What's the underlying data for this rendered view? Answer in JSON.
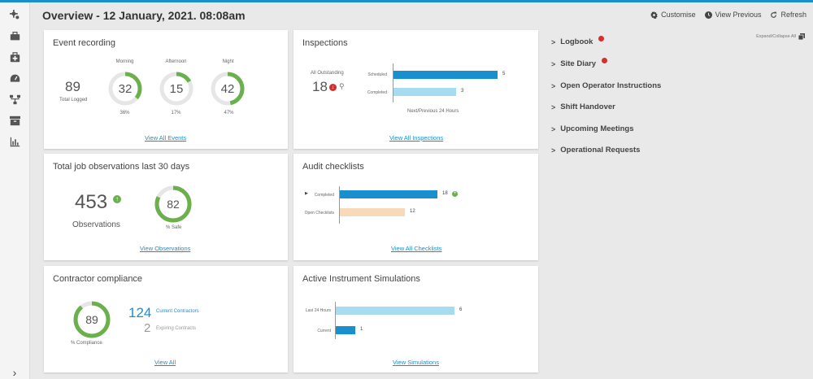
{
  "header": {
    "title": "Overview - 12 January, 2021. 08:08am",
    "customise": "Customise",
    "view_previous": "View Previous",
    "refresh": "Refresh"
  },
  "sidebar": {
    "items": [
      "settings-icon",
      "toolbox-icon",
      "first-aid-icon",
      "dashboard-icon",
      "network-icon",
      "archive-icon",
      "bar-chart-icon"
    ],
    "expand": "›"
  },
  "event_recording": {
    "title": "Event recording",
    "total": "89",
    "total_label": "Total Logged",
    "shifts": [
      {
        "label": "Morning",
        "value": "32",
        "pct_label": "36%",
        "fraction": 0.36
      },
      {
        "label": "Afternoon",
        "value": "15",
        "pct_label": "17%",
        "fraction": 0.17
      },
      {
        "label": "Night",
        "value": "42",
        "pct_label": "47%",
        "fraction": 0.47
      }
    ],
    "link": "View All Events"
  },
  "inspections": {
    "title": "Inspections",
    "outstanding_label": "All Outstanding",
    "outstanding": "18",
    "bars": [
      {
        "label": "Scheduled",
        "value": 5,
        "color": "#1a8fd0"
      },
      {
        "label": "Completed",
        "value": 3,
        "color": "#a7dcf0"
      }
    ],
    "max": 5,
    "axis_label": "Next/Previous 24 Hours",
    "link": "View All Inspections"
  },
  "job_observations": {
    "title": "Total job observations last 30 days",
    "count": "453",
    "count_label": "Observations",
    "safe": "82",
    "safe_fraction": 0.82,
    "safe_label": "% Safe",
    "link": "View Observations"
  },
  "audit_checklists": {
    "title": "Audit checklists",
    "bars": [
      {
        "label": "Completed",
        "value": 18,
        "color": "#1a8fd0"
      },
      {
        "label": "Open Checklists",
        "value": 12,
        "color": "#f8d9b8"
      }
    ],
    "max": 18,
    "link": "View All Checklists"
  },
  "contractor_compliance": {
    "title": "Contractor compliance",
    "compliance": "89",
    "compliance_fraction": 0.89,
    "compliance_label": "% Compliance",
    "current_count": "124",
    "current_label": "Current Contractors",
    "expiring_count": "2",
    "expiring_label": "Expiring Contracts",
    "link": "View All"
  },
  "instrument_simulations": {
    "title": "Active Instrument Simulations",
    "bars": [
      {
        "label": "Last 24 Hours",
        "value": 6,
        "color": "#a7dcf0"
      },
      {
        "label": "Current",
        "value": 1,
        "color": "#1a8fd0"
      }
    ],
    "max": 6,
    "link": "View Simulations"
  },
  "right_panel": {
    "expand_all": "Expand/Collapse All",
    "items": [
      {
        "label": "Logbook",
        "badge": true
      },
      {
        "label": "Site Diary",
        "badge": true
      },
      {
        "label": "Open Operator Instructions",
        "badge": false
      },
      {
        "label": "Shift Handover",
        "badge": false
      },
      {
        "label": "Upcoming Meetings",
        "badge": false
      },
      {
        "label": "Operational Requests",
        "badge": false
      }
    ]
  },
  "colors": {
    "accent": "#1a8fd0",
    "donut_green": "#6ab04c",
    "donut_track": "#e6e6e6",
    "badge_red": "#d32f2f"
  }
}
